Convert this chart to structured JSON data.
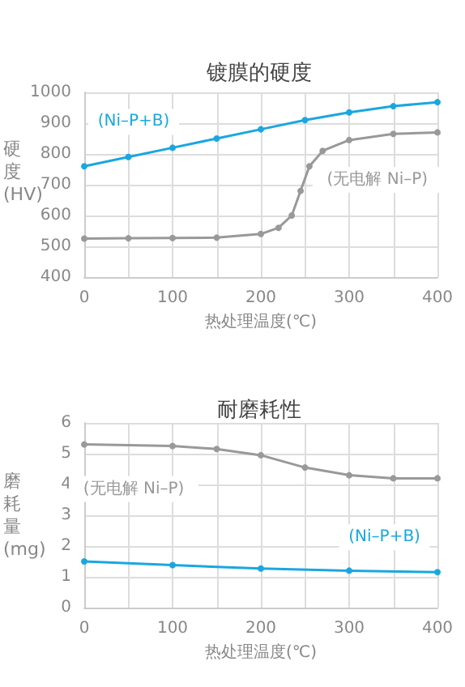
{
  "chart_data": [
    {
      "type": "line",
      "title": "镀膜的硬度",
      "xlabel": "热处理温度(℃)",
      "ylabel": "硬度(HV)",
      "xlim": [
        0,
        400
      ],
      "xticks": [
        0,
        {
          "value": 50,
          "label": null
        },
        100,
        {
          "value": 150,
          "label": null
        },
        200,
        {
          "value": 250,
          "label": null
        },
        300,
        {
          "value": 350,
          "label": null
        },
        400
      ],
      "ylim": [
        400,
        1000
      ],
      "yticks": [
        400,
        500,
        600,
        700,
        800,
        900,
        1000
      ],
      "grid": true,
      "marker": "circle",
      "line_style": "solid",
      "series": [
        {
          "name": "(Ni–P+B)",
          "color": "#1aa7e0",
          "x": [
            0,
            50,
            100,
            150,
            200,
            250,
            300,
            350,
            400
          ],
          "values": [
            760,
            790,
            820,
            850,
            880,
            910,
            935,
            955,
            968
          ]
        },
        {
          "name": "(无电解 Ni–P)",
          "color": "#999999",
          "x": [
            0,
            50,
            100,
            150,
            200,
            220,
            235,
            245,
            255,
            270,
            300,
            350,
            400
          ],
          "values": [
            525,
            526,
            527,
            528,
            540,
            560,
            600,
            680,
            760,
            810,
            845,
            865,
            870
          ]
        }
      ]
    },
    {
      "type": "line",
      "title": "耐磨耗性",
      "xlabel": "热处理温度(℃)",
      "ylabel": "磨耗量(mg)",
      "xlim": [
        0,
        400
      ],
      "xticks": [
        0,
        {
          "value": 50,
          "label": null
        },
        100,
        {
          "value": 150,
          "label": null
        },
        200,
        {
          "value": 250,
          "label": null
        },
        300,
        {
          "value": 350,
          "label": null
        },
        400
      ],
      "ylim": [
        0,
        6
      ],
      "yticks": [
        0,
        1,
        2,
        3,
        4,
        5,
        6
      ],
      "grid": true,
      "marker": "circle",
      "line_style": "solid",
      "series": [
        {
          "name": "(无电解 Ni–P)",
          "color": "#999999",
          "x": [
            0,
            100,
            150,
            200,
            250,
            300,
            350,
            400
          ],
          "values": [
            5.3,
            5.25,
            5.15,
            4.95,
            4.55,
            4.3,
            4.2,
            4.2
          ]
        },
        {
          "name": "(Ni–P+B)",
          "color": "#1aa7e0",
          "x": [
            0,
            100,
            200,
            300,
            400
          ],
          "values": [
            1.5,
            1.38,
            1.27,
            1.2,
            1.15
          ]
        }
      ]
    }
  ]
}
